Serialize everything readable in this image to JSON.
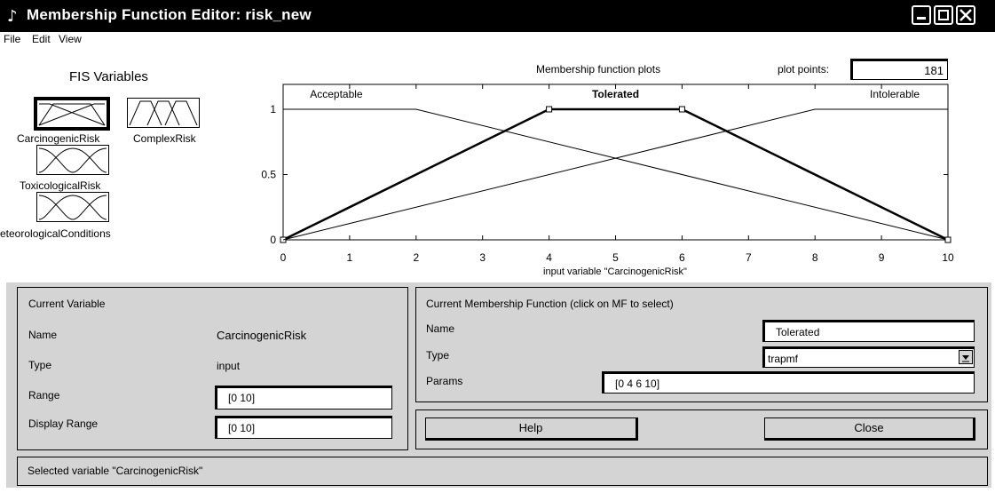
{
  "window": {
    "title": "Membership Function Editor: risk_new",
    "icon": "matlab-icon"
  },
  "menu": [
    "File",
    "Edit",
    "View"
  ],
  "fis": {
    "title": "FIS Variables",
    "variables": [
      "CarcinogenicRisk",
      "ComplexRisk",
      "ToxicologicalRisk",
      "eteorologicalConditions"
    ]
  },
  "plot": {
    "title": "Membership function plots",
    "plot_points_label": "plot points:",
    "plot_points_value": "181",
    "xlabel": "input variable \"CarcinogenicRisk\""
  },
  "chart_data": {
    "type": "line",
    "title": "Membership function plots",
    "xlabel": "input variable \"CarcinogenicRisk\"",
    "ylabel": "",
    "xlim": [
      0,
      10
    ],
    "ylim": [
      0,
      1
    ],
    "xticks": [
      "0",
      "1",
      "2",
      "3",
      "4",
      "5",
      "6",
      "7",
      "8",
      "9",
      "10"
    ],
    "yticks": [
      "0",
      "0.5",
      "1"
    ],
    "grid": false,
    "series": [
      {
        "name": "Acceptable",
        "x": [
          0,
          2,
          10
        ],
        "y": [
          1,
          1,
          0
        ],
        "selected": false
      },
      {
        "name": "Tolerated",
        "x": [
          0,
          4,
          6,
          10
        ],
        "y": [
          0,
          1,
          1,
          0
        ],
        "selected": true
      },
      {
        "name": "Intolerable",
        "x": [
          0,
          8,
          10
        ],
        "y": [
          0,
          1,
          1
        ],
        "selected": false
      }
    ]
  },
  "current_variable": {
    "header": "Current Variable",
    "name_label": "Name",
    "name_value": "CarcinogenicRisk",
    "type_label": "Type",
    "type_value": "input",
    "range_label": "Range",
    "range_value": "[0 10]",
    "display_range_label": "Display Range",
    "display_range_value": "[0 10]"
  },
  "current_mf": {
    "header": "Current Membership Function (click on MF to select)",
    "name_label": "Name",
    "name_value": "Tolerated",
    "type_label": "Type",
    "type_value": "trapmf",
    "params_label": "Params",
    "params_value": "[0 4 6 10]"
  },
  "buttons": {
    "help": "Help",
    "close": "Close"
  },
  "status": "Selected variable \"CarcinogenicRisk\""
}
